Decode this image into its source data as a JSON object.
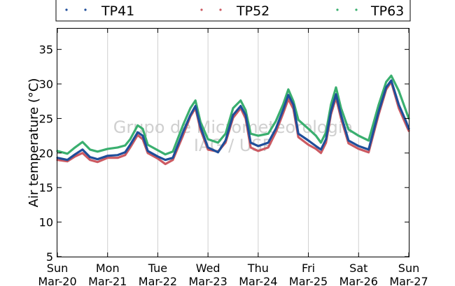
{
  "chart_data": {
    "type": "line",
    "title": "",
    "xlabel": "",
    "ylabel": "Air temperature (°C)",
    "ylim": [
      5,
      38
    ],
    "y_ticks": [
      5,
      10,
      15,
      20,
      25,
      30,
      35
    ],
    "x_range_days": [
      0,
      7
    ],
    "x_ticks": [
      {
        "day": "Sun",
        "date": "Mar-20"
      },
      {
        "day": "Mon",
        "date": "Mar-21"
      },
      {
        "day": "Tue",
        "date": "Mar-22"
      },
      {
        "day": "Wed",
        "date": "Mar-23"
      },
      {
        "day": "Thu",
        "date": "Mar-24"
      },
      {
        "day": "Fri",
        "date": "Mar-25"
      },
      {
        "day": "Sat",
        "date": "Mar-26"
      },
      {
        "day": "Sun",
        "date": "Mar-27"
      }
    ],
    "grid": {
      "vertical": true,
      "horizontal": false
    },
    "legend_position": "top",
    "watermark": [
      "Grupo de Micrometeorología",
      "IAG / USP"
    ],
    "series": [
      {
        "name": "TP41",
        "color": "#1f4e9a",
        "points": [
          [
            0.0,
            19.3
          ],
          [
            0.2,
            19.0
          ],
          [
            0.35,
            19.8
          ],
          [
            0.5,
            20.5
          ],
          [
            0.65,
            19.4
          ],
          [
            0.8,
            19.1
          ],
          [
            1.0,
            19.6
          ],
          [
            1.2,
            19.7
          ],
          [
            1.35,
            20.1
          ],
          [
            1.45,
            21.2
          ],
          [
            1.6,
            23.0
          ],
          [
            1.7,
            22.5
          ],
          [
            1.8,
            20.3
          ],
          [
            2.0,
            19.5
          ],
          [
            2.15,
            19.0
          ],
          [
            2.3,
            19.3
          ],
          [
            2.5,
            23.0
          ],
          [
            2.65,
            25.5
          ],
          [
            2.75,
            26.8
          ],
          [
            2.85,
            23.8
          ],
          [
            3.0,
            20.8
          ],
          [
            3.2,
            20.1
          ],
          [
            3.35,
            21.8
          ],
          [
            3.5,
            25.5
          ],
          [
            3.65,
            26.8
          ],
          [
            3.75,
            25.5
          ],
          [
            3.85,
            21.5
          ],
          [
            4.0,
            21.0
          ],
          [
            4.2,
            21.5
          ],
          [
            4.35,
            23.5
          ],
          [
            4.5,
            26.3
          ],
          [
            4.6,
            28.4
          ],
          [
            4.7,
            27.0
          ],
          [
            4.8,
            22.8
          ],
          [
            5.0,
            21.8
          ],
          [
            5.15,
            21.0
          ],
          [
            5.25,
            20.5
          ],
          [
            5.35,
            22.0
          ],
          [
            5.45,
            26.0
          ],
          [
            5.55,
            28.5
          ],
          [
            5.65,
            25.5
          ],
          [
            5.8,
            21.8
          ],
          [
            6.0,
            21.0
          ],
          [
            6.2,
            20.5
          ],
          [
            6.4,
            26.0
          ],
          [
            6.55,
            29.5
          ],
          [
            6.65,
            30.5
          ],
          [
            6.8,
            27.0
          ],
          [
            6.95,
            24.5
          ],
          [
            7.0,
            23.5
          ]
        ]
      },
      {
        "name": "TP52",
        "color": "#cc5a62",
        "points": [
          [
            0.0,
            19.0
          ],
          [
            0.2,
            18.8
          ],
          [
            0.35,
            19.5
          ],
          [
            0.5,
            20.0
          ],
          [
            0.65,
            19.0
          ],
          [
            0.8,
            18.7
          ],
          [
            1.0,
            19.3
          ],
          [
            1.2,
            19.3
          ],
          [
            1.35,
            19.7
          ],
          [
            1.45,
            20.8
          ],
          [
            1.6,
            22.6
          ],
          [
            1.7,
            22.0
          ],
          [
            1.8,
            20.0
          ],
          [
            2.0,
            19.2
          ],
          [
            2.15,
            18.4
          ],
          [
            2.3,
            19.0
          ],
          [
            2.5,
            22.5
          ],
          [
            2.65,
            25.3
          ],
          [
            2.75,
            26.5
          ],
          [
            2.85,
            23.4
          ],
          [
            3.0,
            20.5
          ],
          [
            3.2,
            20.2
          ],
          [
            3.35,
            21.5
          ],
          [
            3.5,
            25.1
          ],
          [
            3.65,
            26.5
          ],
          [
            3.75,
            25.0
          ],
          [
            3.85,
            20.8
          ],
          [
            4.0,
            20.3
          ],
          [
            4.2,
            20.8
          ],
          [
            4.35,
            23.0
          ],
          [
            4.5,
            25.8
          ],
          [
            4.6,
            27.8
          ],
          [
            4.7,
            26.4
          ],
          [
            4.8,
            22.3
          ],
          [
            5.0,
            21.2
          ],
          [
            5.15,
            20.6
          ],
          [
            5.25,
            20.0
          ],
          [
            5.35,
            21.5
          ],
          [
            5.45,
            25.6
          ],
          [
            5.55,
            28.0
          ],
          [
            5.65,
            25.0
          ],
          [
            5.8,
            21.4
          ],
          [
            6.0,
            20.6
          ],
          [
            6.2,
            20.1
          ],
          [
            6.4,
            25.6
          ],
          [
            6.55,
            29.2
          ],
          [
            6.65,
            30.3
          ],
          [
            6.8,
            26.5
          ],
          [
            6.95,
            24.0
          ],
          [
            7.0,
            23.2
          ]
        ]
      },
      {
        "name": "TP63",
        "color": "#3aaf6f",
        "points": [
          [
            0.0,
            20.3
          ],
          [
            0.2,
            19.9
          ],
          [
            0.35,
            20.8
          ],
          [
            0.5,
            21.6
          ],
          [
            0.65,
            20.5
          ],
          [
            0.8,
            20.2
          ],
          [
            1.0,
            20.6
          ],
          [
            1.2,
            20.8
          ],
          [
            1.35,
            21.1
          ],
          [
            1.45,
            22.0
          ],
          [
            1.6,
            24.0
          ],
          [
            1.7,
            23.5
          ],
          [
            1.8,
            21.2
          ],
          [
            2.0,
            20.4
          ],
          [
            2.15,
            19.8
          ],
          [
            2.3,
            20.2
          ],
          [
            2.5,
            24.0
          ],
          [
            2.65,
            26.5
          ],
          [
            2.75,
            27.6
          ],
          [
            2.85,
            24.5
          ],
          [
            3.0,
            22.0
          ],
          [
            3.2,
            21.5
          ],
          [
            3.35,
            22.8
          ],
          [
            3.5,
            26.5
          ],
          [
            3.65,
            27.6
          ],
          [
            3.75,
            26.2
          ],
          [
            3.85,
            22.8
          ],
          [
            4.0,
            22.5
          ],
          [
            4.2,
            22.8
          ],
          [
            4.35,
            24.6
          ],
          [
            4.5,
            27.1
          ],
          [
            4.6,
            29.2
          ],
          [
            4.7,
            27.5
          ],
          [
            4.8,
            24.8
          ],
          [
            5.0,
            23.5
          ],
          [
            5.15,
            22.5
          ],
          [
            5.25,
            21.5
          ],
          [
            5.35,
            23.0
          ],
          [
            5.45,
            27.0
          ],
          [
            5.55,
            29.5
          ],
          [
            5.65,
            26.5
          ],
          [
            5.8,
            23.4
          ],
          [
            6.0,
            22.5
          ],
          [
            6.2,
            21.8
          ],
          [
            6.4,
            27.0
          ],
          [
            6.55,
            30.3
          ],
          [
            6.65,
            31.2
          ],
          [
            6.8,
            29.0
          ],
          [
            6.95,
            26.0
          ],
          [
            7.0,
            25.0
          ]
        ]
      }
    ]
  }
}
